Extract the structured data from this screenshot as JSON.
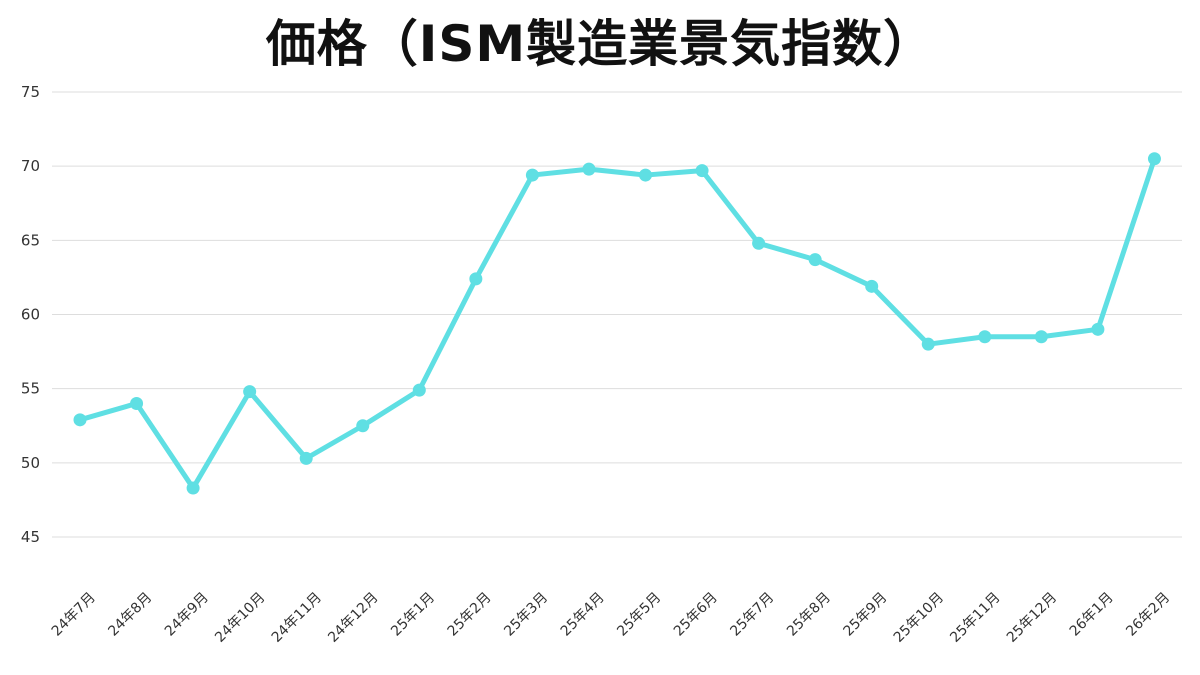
{
  "chart_data": {
    "type": "line",
    "title": "価格（ISM製造業景気指数）",
    "xlabel": "",
    "ylabel": "",
    "ylim": [
      45,
      75
    ],
    "yticks": [
      45,
      50,
      55,
      60,
      65,
      70,
      75
    ],
    "grid": true,
    "legend": "none",
    "categories": [
      "24年7月",
      "24年8月",
      "24年9月",
      "24年10月",
      "24年11月",
      "24年12月",
      "25年1月",
      "25年2月",
      "25年3月",
      "25年4月",
      "25年5月",
      "25年6月",
      "25年7月",
      "25年8月",
      "25年9月",
      "25年10月",
      "25年11月",
      "25年12月",
      "26年1月",
      "26年2月"
    ],
    "series": [
      {
        "color": "#5fdfe3",
        "values": [
          52.9,
          54.0,
          48.3,
          54.8,
          50.3,
          52.5,
          54.9,
          62.4,
          69.4,
          69.8,
          69.4,
          69.7,
          64.8,
          63.7,
          61.9,
          58.0,
          58.5,
          58.5,
          59.0,
          70.5
        ]
      }
    ]
  },
  "colors": {
    "line": "#5fdfe3",
    "grid": "#dddddd",
    "text": "#333333",
    "title": "#111111"
  }
}
